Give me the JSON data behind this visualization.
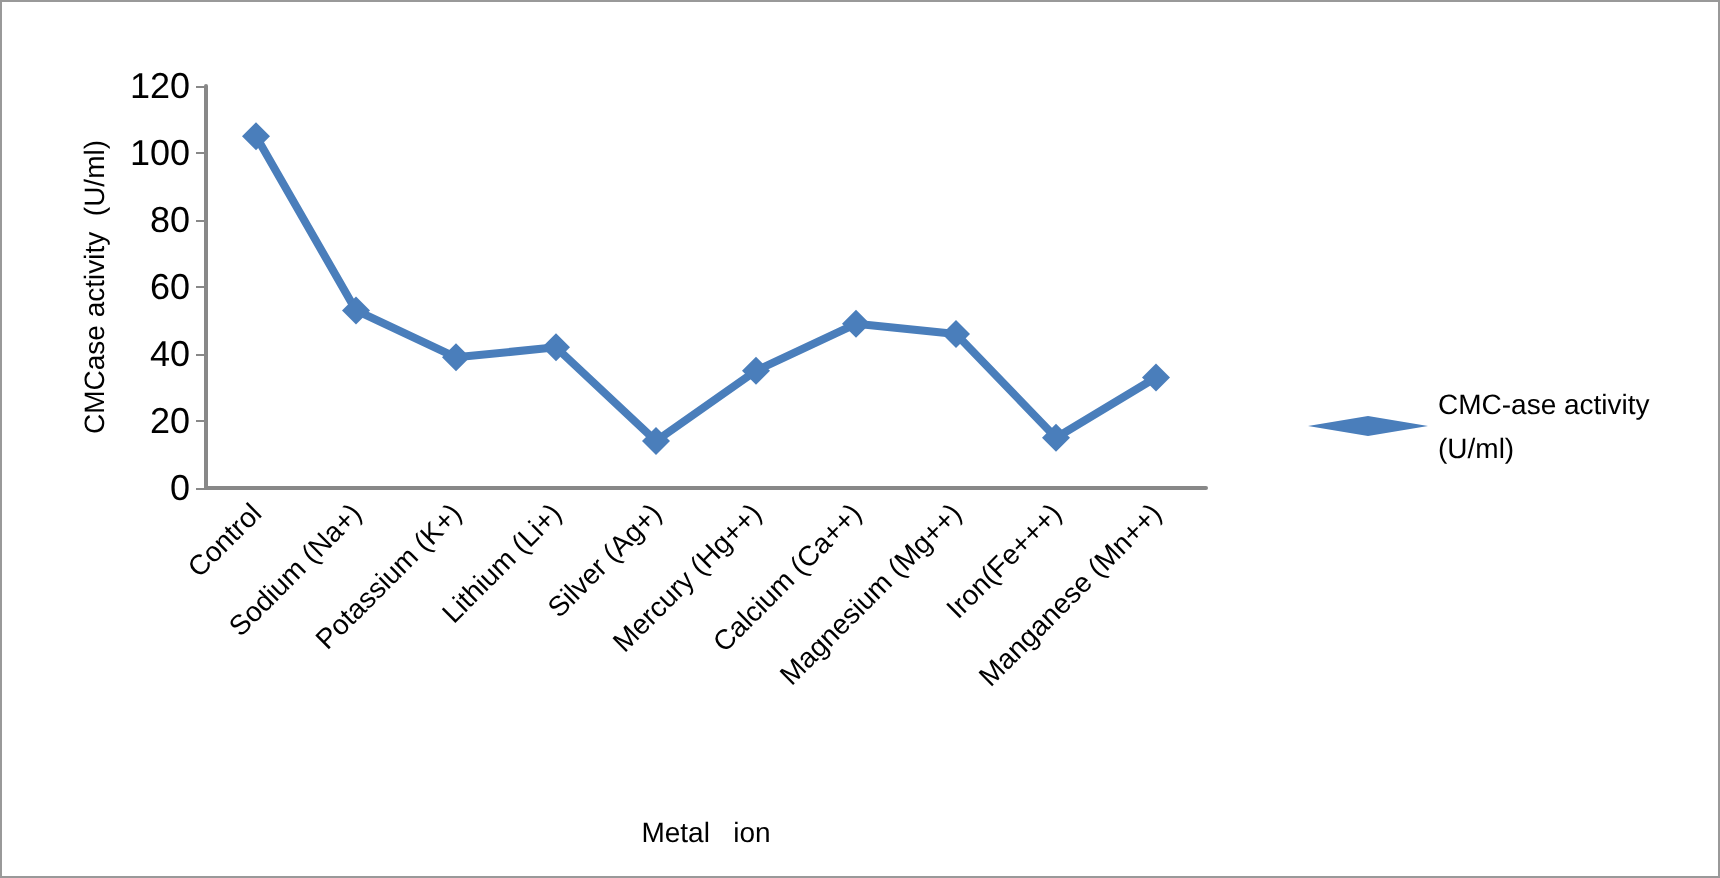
{
  "chart_data": {
    "type": "line",
    "xlabel": "Metal   ion",
    "ylabel": "CMCase activity  (U/ml)",
    "categories": [
      "Control",
      "Sodium (Na+)",
      "Potassium (K+)",
      "Lithium (Li+)",
      "Silver (Ag+)",
      "Mercury (Hg++)",
      "Calcium (Ca++)",
      "Magnesium (Mg++)",
      "Iron(Fe+++)",
      "Manganese (Mn++)"
    ],
    "series": [
      {
        "name": "CMC-ase activity (U/ml)",
        "color": "#4a7ebb",
        "values": [
          105,
          53,
          39,
          42,
          14,
          35,
          49,
          46,
          15,
          33
        ]
      }
    ],
    "ylim": [
      0,
      120
    ],
    "yticks": [
      0,
      20,
      40,
      60,
      80,
      100,
      120
    ],
    "grid": false,
    "legend": "right",
    "marker": "diamond",
    "line_style": "solid"
  }
}
